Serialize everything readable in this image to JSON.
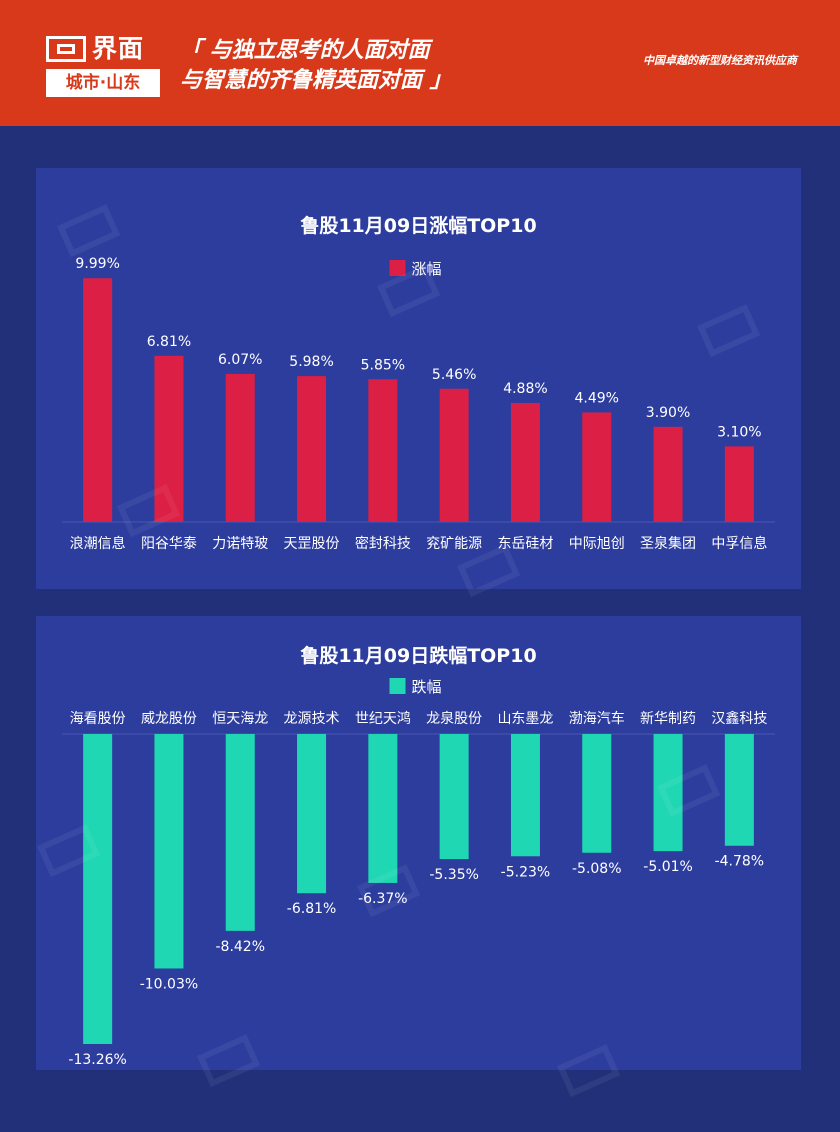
{
  "header": {
    "logo_main": "界面",
    "logo_sub": "城市·山东",
    "slogan_line1": "「 与独立思考的人面对面",
    "slogan_line2": "与智慧的齐鲁精英面对面 」",
    "tagline": "中国卓越的新型财经资讯供应商",
    "background_color": "#d8391b"
  },
  "chart_data": [
    {
      "type": "bar",
      "title": "鲁股11月09日涨幅TOP10",
      "legend": "涨幅",
      "color": "#dc1f45",
      "categories": [
        "浪潮信息",
        "阳谷华泰",
        "力诺特玻",
        "天罡股份",
        "密封科技",
        "兖矿能源",
        "东岳硅材",
        "中际旭创",
        "圣泉集团",
        "中孚信息"
      ],
      "values": [
        9.99,
        6.81,
        6.07,
        5.98,
        5.85,
        5.46,
        4.88,
        4.49,
        3.9,
        3.1
      ],
      "labels": [
        "9.99%",
        "6.81%",
        "6.07%",
        "5.98%",
        "5.85%",
        "5.46%",
        "4.88%",
        "4.49%",
        "3.90%",
        "3.10%"
      ],
      "ylim": [
        0,
        10
      ],
      "unit": "%"
    },
    {
      "type": "bar",
      "title": "鲁股11月09日跌幅TOP10",
      "legend": "跌幅",
      "color": "#20d7b3",
      "categories": [
        "海看股份",
        "威龙股份",
        "恒天海龙",
        "龙源技术",
        "世纪天鸿",
        "龙泉股份",
        "山东墨龙",
        "渤海汽车",
        "新华制药",
        "汉鑫科技"
      ],
      "values": [
        -13.26,
        -10.03,
        -8.42,
        -6.81,
        -6.37,
        -5.35,
        -5.23,
        -5.08,
        -5.01,
        -4.78
      ],
      "labels": [
        "-13.26%",
        "-10.03%",
        "-8.42%",
        "-6.81%",
        "-6.37%",
        "-5.35%",
        "-5.23%",
        "-5.08%",
        "-5.01%",
        "-4.78%"
      ],
      "ylim": [
        -13.26,
        0
      ],
      "unit": "%"
    }
  ]
}
